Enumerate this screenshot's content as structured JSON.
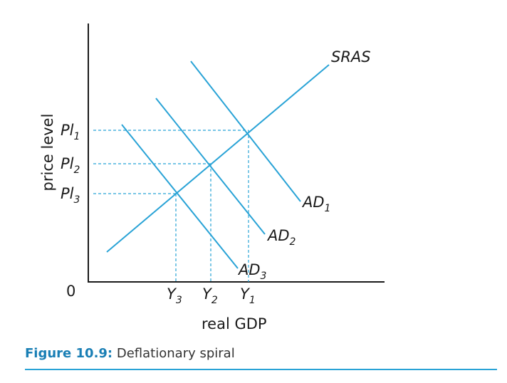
{
  "diagram": {
    "y_axis_label": "price level",
    "x_axis_label": "real GDP",
    "origin_label": "0",
    "curves": {
      "sras": "SRAS",
      "ad1": {
        "base": "AD",
        "sub": "1"
      },
      "ad2": {
        "base": "AD",
        "sub": "2"
      },
      "ad3": {
        "base": "AD",
        "sub": "3"
      }
    },
    "price_levels": [
      {
        "base": "Pl",
        "sub": "1"
      },
      {
        "base": "Pl",
        "sub": "2"
      },
      {
        "base": "Pl",
        "sub": "3"
      }
    ],
    "outputs": [
      {
        "base": "Y",
        "sub": "3"
      },
      {
        "base": "Y",
        "sub": "2"
      },
      {
        "base": "Y",
        "sub": "1"
      }
    ],
    "colors": {
      "curve": "#29a3d6",
      "axis": "#1a1a1a",
      "caption_accent": "#1a7fb5"
    }
  },
  "caption": {
    "label": "Figure 10.9:",
    "text": "Deflationary spiral"
  }
}
